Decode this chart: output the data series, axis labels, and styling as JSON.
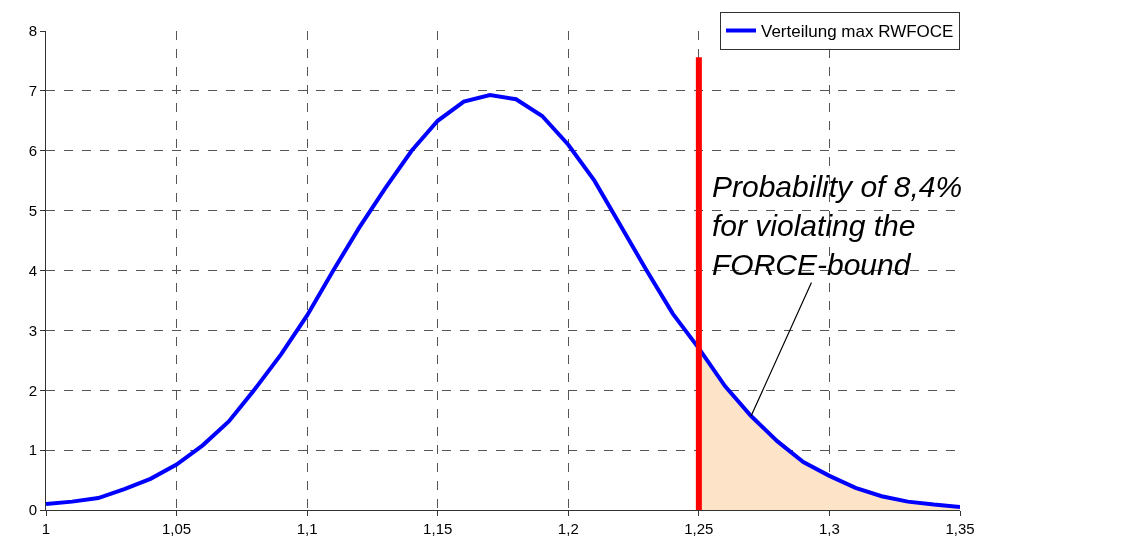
{
  "chart_data": {
    "type": "line",
    "x": [
      1.0,
      1.01,
      1.02,
      1.03,
      1.04,
      1.05,
      1.06,
      1.07,
      1.08,
      1.09,
      1.1,
      1.11,
      1.12,
      1.13,
      1.14,
      1.15,
      1.16,
      1.17,
      1.18,
      1.19,
      1.2,
      1.21,
      1.22,
      1.23,
      1.24,
      1.25,
      1.26,
      1.27,
      1.28,
      1.29,
      1.3,
      1.31,
      1.32,
      1.33,
      1.34,
      1.35
    ],
    "series": [
      {
        "name": "Verteilung max RWFOCE",
        "color": "#0000ff",
        "values": [
          0.1,
          0.14,
          0.2,
          0.35,
          0.52,
          0.76,
          1.08,
          1.48,
          2.02,
          2.6,
          3.25,
          4.0,
          4.72,
          5.38,
          6.0,
          6.5,
          6.82,
          6.93,
          6.86,
          6.58,
          6.1,
          5.5,
          4.75,
          4.0,
          3.28,
          2.7,
          2.07,
          1.57,
          1.15,
          0.8,
          0.57,
          0.37,
          0.23,
          0.14,
          0.09,
          0.05
        ]
      },
      {
        "type": "area",
        "color": "#fde3c8",
        "x": [
          1.25,
          1.26,
          1.27,
          1.28,
          1.29,
          1.3,
          1.31,
          1.32,
          1.33,
          1.34,
          1.35
        ],
        "values": [
          2.7,
          2.07,
          1.57,
          1.15,
          0.8,
          0.57,
          0.37,
          0.23,
          0.14,
          0.09,
          0.05
        ]
      }
    ],
    "xlim": [
      1.0,
      1.35
    ],
    "xticks": [
      1,
      {
        "value": 1.05,
        "label": "1,05"
      },
      {
        "value": 1.1,
        "label": "1,1"
      },
      {
        "value": 1.15,
        "label": "1,15"
      },
      {
        "value": 1.2,
        "label": "1,2"
      },
      {
        "value": 1.25,
        "label": "1,25"
      },
      {
        "value": 1.3,
        "label": "1,3"
      },
      {
        "value": 1.35,
        "label": "1,35"
      }
    ],
    "ylim": [
      0,
      8
    ],
    "yticks": [
      0,
      1,
      2,
      3,
      4,
      5,
      6,
      7,
      8
    ],
    "ref_lines": [
      {
        "axis": "x",
        "value": 1.25,
        "color": "#ff0000"
      }
    ],
    "annotations": [
      {
        "text": "Probability of 8,4%\nfor violating the\nFORCE-bound",
        "x": 1.27,
        "y": 1.57
      }
    ],
    "grid": true,
    "line_style": "solid",
    "marker": "none",
    "legend": "top right"
  }
}
